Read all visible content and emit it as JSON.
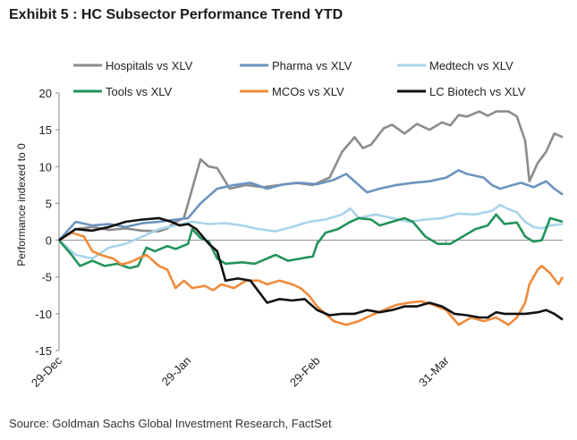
{
  "title": "Exhibit 5 : HC Subsector Performance Trend YTD",
  "source": "Source: Goldman Sachs Global Investment Research, FactSet",
  "chart_data": {
    "type": "line",
    "title": "Exhibit 5 : HC Subsector Performance Trend YTD",
    "ylabel": "Performance indexed to 0",
    "xlabel": "",
    "ylim": [
      -15,
      20
    ],
    "yticks": [
      20,
      15,
      10,
      5,
      0,
      -5,
      -10,
      -15
    ],
    "x_ticks": [
      {
        "label": "29-Dec",
        "x": 0
      },
      {
        "label": "29-Jan",
        "x": 31
      },
      {
        "label": "29-Feb",
        "x": 62
      },
      {
        "label": "31-Mar",
        "x": 93
      }
    ],
    "xlim": [
      0,
      121
    ],
    "grid": false,
    "legend_position": "top",
    "series": [
      {
        "name": "Hospitals vs XLV",
        "color": "#8c8c8c",
        "points": [
          [
            0,
            0
          ],
          [
            4,
            1.5
          ],
          [
            8,
            1.8
          ],
          [
            12,
            1.4
          ],
          [
            16,
            1.6
          ],
          [
            20,
            1.3
          ],
          [
            24,
            1.2
          ],
          [
            26,
            1.6
          ],
          [
            28,
            2.5
          ],
          [
            30,
            3
          ],
          [
            32,
            7
          ],
          [
            34,
            11
          ],
          [
            36,
            10
          ],
          [
            38,
            9.8
          ],
          [
            41,
            7
          ],
          [
            45,
            7.5
          ],
          [
            49,
            7.2
          ],
          [
            53,
            7.5
          ],
          [
            57,
            7.8
          ],
          [
            61,
            7.5
          ],
          [
            65,
            8.5
          ],
          [
            68,
            12
          ],
          [
            71,
            14
          ],
          [
            73,
            12.5
          ],
          [
            75,
            13
          ],
          [
            78,
            15.2
          ],
          [
            80,
            15.7
          ],
          [
            83,
            14.5
          ],
          [
            86,
            15.8
          ],
          [
            89,
            15
          ],
          [
            92,
            16
          ],
          [
            94,
            15.6
          ],
          [
            96,
            17
          ],
          [
            98,
            16.8
          ],
          [
            101,
            17.5
          ],
          [
            103,
            16.9
          ],
          [
            105,
            17.5
          ],
          [
            108,
            17.5
          ],
          [
            110,
            16.8
          ],
          [
            112,
            13.5
          ],
          [
            113,
            8
          ],
          [
            115,
            10.5
          ],
          [
            117,
            12
          ],
          [
            119,
            14.5
          ],
          [
            121,
            14
          ]
        ]
      },
      {
        "name": "Pharma vs XLV",
        "color": "#6b93bf",
        "points": [
          [
            0,
            0
          ],
          [
            4,
            2.5
          ],
          [
            8,
            2
          ],
          [
            12,
            2.2
          ],
          [
            16,
            1.8
          ],
          [
            20,
            2.3
          ],
          [
            24,
            2.5
          ],
          [
            28,
            2.8
          ],
          [
            31,
            3
          ],
          [
            34,
            5
          ],
          [
            36,
            6
          ],
          [
            38,
            7
          ],
          [
            42,
            7.5
          ],
          [
            46,
            7.8
          ],
          [
            50,
            7
          ],
          [
            54,
            7.6
          ],
          [
            58,
            7.8
          ],
          [
            62,
            7.6
          ],
          [
            66,
            8.2
          ],
          [
            69,
            9
          ],
          [
            72,
            7.5
          ],
          [
            74,
            6.5
          ],
          [
            77,
            7
          ],
          [
            81,
            7.5
          ],
          [
            85,
            7.8
          ],
          [
            89,
            8
          ],
          [
            93,
            8.5
          ],
          [
            96,
            9.5
          ],
          [
            98,
            9
          ],
          [
            102,
            8.5
          ],
          [
            104,
            7.5
          ],
          [
            106,
            7
          ],
          [
            109,
            7.5
          ],
          [
            111,
            7.8
          ],
          [
            114,
            7.2
          ],
          [
            117,
            8
          ],
          [
            119,
            7
          ],
          [
            121,
            6.2
          ]
        ]
      },
      {
        "name": "Medtech vs XLV",
        "color": "#a8d4ea",
        "points": [
          [
            0,
            0
          ],
          [
            4,
            -2
          ],
          [
            8,
            -2.5
          ],
          [
            12,
            -1
          ],
          [
            16,
            -0.5
          ],
          [
            20,
            0.5
          ],
          [
            24,
            1.5
          ],
          [
            28,
            2
          ],
          [
            32,
            2.5
          ],
          [
            36,
            2.2
          ],
          [
            40,
            2.3
          ],
          [
            44,
            2
          ],
          [
            48,
            1.5
          ],
          [
            52,
            1.2
          ],
          [
            56,
            1.8
          ],
          [
            60,
            2.5
          ],
          [
            64,
            2.8
          ],
          [
            68,
            3.5
          ],
          [
            70,
            4.3
          ],
          [
            72,
            3
          ],
          [
            76,
            3.5
          ],
          [
            80,
            3
          ],
          [
            84,
            2.5
          ],
          [
            88,
            2.8
          ],
          [
            92,
            3
          ],
          [
            96,
            3.6
          ],
          [
            100,
            3.5
          ],
          [
            104,
            4
          ],
          [
            106,
            4.8
          ],
          [
            108,
            4.2
          ],
          [
            110,
            3.8
          ],
          [
            112,
            2.5
          ],
          [
            114,
            1.8
          ],
          [
            116,
            1.6
          ],
          [
            118,
            2
          ],
          [
            121,
            2.2
          ]
        ]
      },
      {
        "name": "Tools vs XLV",
        "color": "#22935a",
        "points": [
          [
            0,
            0
          ],
          [
            3,
            -2
          ],
          [
            5,
            -3.5
          ],
          [
            8,
            -2.8
          ],
          [
            11,
            -3.5
          ],
          [
            14,
            -3.2
          ],
          [
            17,
            -3.8
          ],
          [
            19,
            -3.5
          ],
          [
            21,
            -1
          ],
          [
            23,
            -1.5
          ],
          [
            26,
            -0.8
          ],
          [
            28,
            -1.2
          ],
          [
            31,
            -0.5
          ],
          [
            32,
            1.5
          ],
          [
            34,
            0.3
          ],
          [
            36,
            -0.2
          ],
          [
            38,
            -2.5
          ],
          [
            40,
            -3.2
          ],
          [
            44,
            -3
          ],
          [
            47,
            -3.2
          ],
          [
            50,
            -2.5
          ],
          [
            52,
            -2
          ],
          [
            55,
            -2.8
          ],
          [
            58,
            -2.5
          ],
          [
            61,
            -2.2
          ],
          [
            62,
            -0.5
          ],
          [
            64,
            1
          ],
          [
            67,
            1.5
          ],
          [
            70,
            2.5
          ],
          [
            72,
            3
          ],
          [
            75,
            2.8
          ],
          [
            77,
            2
          ],
          [
            80,
            2.5
          ],
          [
            83,
            3
          ],
          [
            85,
            2.5
          ],
          [
            88,
            0.5
          ],
          [
            91,
            -0.5
          ],
          [
            94,
            -0.5
          ],
          [
            97,
            0.5
          ],
          [
            100,
            1.5
          ],
          [
            103,
            2
          ],
          [
            105,
            3.5
          ],
          [
            107,
            2.2
          ],
          [
            110,
            2.4
          ],
          [
            112,
            0.5
          ],
          [
            114,
            -0.2
          ],
          [
            116,
            0
          ],
          [
            118,
            3
          ],
          [
            121,
            2.5
          ]
        ]
      },
      {
        "name": "MCOs vs XLV",
        "color": "#f08a3a",
        "points": [
          [
            0,
            0
          ],
          [
            3,
            1
          ],
          [
            6,
            0.5
          ],
          [
            8,
            -1.5
          ],
          [
            10,
            -2
          ],
          [
            13,
            -2.5
          ],
          [
            15,
            -3.3
          ],
          [
            17,
            -3
          ],
          [
            19,
            -2.5
          ],
          [
            21,
            -2
          ],
          [
            24,
            -3.5
          ],
          [
            26,
            -4
          ],
          [
            28,
            -6.5
          ],
          [
            30,
            -5.5
          ],
          [
            32,
            -6.5
          ],
          [
            35,
            -6.2
          ],
          [
            37,
            -6.8
          ],
          [
            39,
            -6
          ],
          [
            42,
            -6.5
          ],
          [
            45,
            -5.5
          ],
          [
            48,
            -5.5
          ],
          [
            50,
            -6
          ],
          [
            53,
            -5.5
          ],
          [
            56,
            -6
          ],
          [
            58,
            -6.5
          ],
          [
            60,
            -7.5
          ],
          [
            62,
            -9
          ],
          [
            64,
            -10
          ],
          [
            66,
            -11
          ],
          [
            69,
            -11.5
          ],
          [
            72,
            -11
          ],
          [
            75,
            -10.2
          ],
          [
            78,
            -9.5
          ],
          [
            81,
            -8.8
          ],
          [
            84,
            -8.5
          ],
          [
            87,
            -8.3
          ],
          [
            90,
            -8.8
          ],
          [
            93,
            -9.5
          ],
          [
            96,
            -11.5
          ],
          [
            99,
            -10.5
          ],
          [
            102,
            -11
          ],
          [
            105,
            -10.5
          ],
          [
            108,
            -11.5
          ],
          [
            110,
            -10.5
          ],
          [
            112,
            -8.5
          ],
          [
            113,
            -6
          ],
          [
            115,
            -4
          ],
          [
            116,
            -3.5
          ],
          [
            118,
            -4.5
          ],
          [
            120,
            -6
          ],
          [
            121,
            -5
          ]
        ]
      },
      {
        "name": "LC Biotech vs XLV",
        "color": "#111111",
        "points": [
          [
            0,
            0
          ],
          [
            4,
            1.5
          ],
          [
            8,
            1.3
          ],
          [
            12,
            1.8
          ],
          [
            16,
            2.5
          ],
          [
            20,
            2.8
          ],
          [
            24,
            3
          ],
          [
            27,
            2.5
          ],
          [
            29,
            2
          ],
          [
            31,
            2.2
          ],
          [
            33,
            1.5
          ],
          [
            36,
            -0.5
          ],
          [
            38,
            -1.5
          ],
          [
            40,
            -5.5
          ],
          [
            43,
            -5.2
          ],
          [
            46,
            -5.5
          ],
          [
            48,
            -7
          ],
          [
            50,
            -8.5
          ],
          [
            53,
            -8
          ],
          [
            56,
            -8.2
          ],
          [
            59,
            -8
          ],
          [
            62,
            -9.5
          ],
          [
            65,
            -10.2
          ],
          [
            68,
            -10
          ],
          [
            71,
            -10
          ],
          [
            74,
            -9.5
          ],
          [
            77,
            -9.8
          ],
          [
            80,
            -9.5
          ],
          [
            83,
            -9
          ],
          [
            86,
            -9
          ],
          [
            89,
            -8.5
          ],
          [
            92,
            -9
          ],
          [
            95,
            -10
          ],
          [
            98,
            -10.2
          ],
          [
            101,
            -10.5
          ],
          [
            103,
            -10.5
          ],
          [
            105,
            -9.8
          ],
          [
            107,
            -10
          ],
          [
            110,
            -10
          ],
          [
            112,
            -10
          ],
          [
            115,
            -9.8
          ],
          [
            117,
            -9.5
          ],
          [
            119,
            -10
          ],
          [
            121,
            -10.8
          ]
        ]
      }
    ]
  }
}
